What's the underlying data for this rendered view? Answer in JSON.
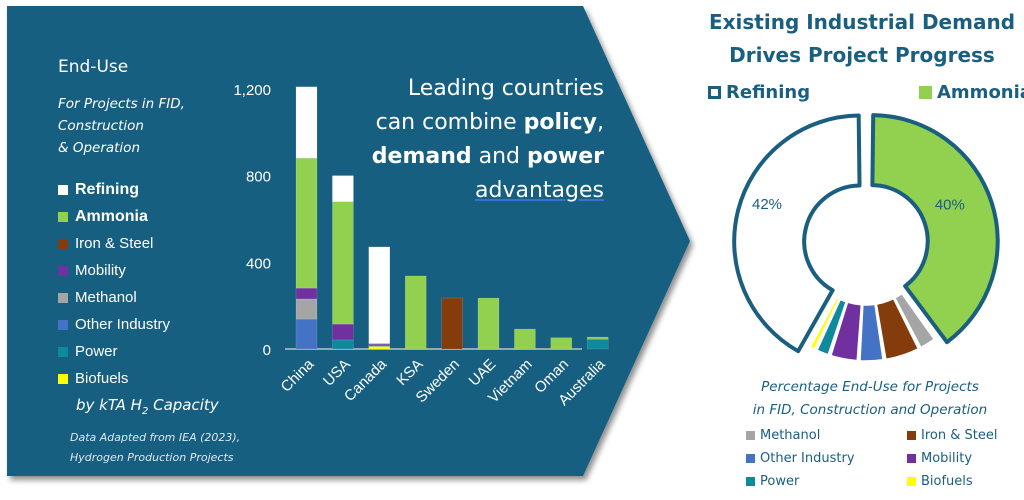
{
  "colors": {
    "panel": "#175e80",
    "refining": "#ffffff",
    "ammonia": "#92d050",
    "iron_steel": "#843c0c",
    "mobility": "#7030a0",
    "methanol": "#a5a5a5",
    "other_industry": "#4472c4",
    "power": "#0e8a9c",
    "biofuels": "#ffff00",
    "title_blue": "#1a5e80"
  },
  "left_panel": {
    "title": "End-Use",
    "subtitle_lines": [
      "For Projects in FID,",
      "Construction",
      "& Operation"
    ],
    "legend": [
      {
        "label": "Refining",
        "key": "refining",
        "bold": true
      },
      {
        "label": "Ammonia",
        "key": "ammonia",
        "bold": true
      },
      {
        "label": "Iron & Steel",
        "key": "iron_steel",
        "bold": false
      },
      {
        "label": "Mobility",
        "key": "mobility",
        "bold": false
      },
      {
        "label": "Methanol",
        "key": "methanol",
        "bold": false
      },
      {
        "label": "Other Industry",
        "key": "other_industry",
        "bold": false
      },
      {
        "label": "Power",
        "key": "power",
        "bold": false
      },
      {
        "label": "Biofuels",
        "key": "biofuels",
        "bold": false
      }
    ],
    "unit_pre": "by kTA H",
    "unit_sub": "2",
    "unit_post": " Capacity",
    "source_lines": [
      "Data Adapted from IEA (2023),",
      "Hydrogen Production Projects"
    ]
  },
  "headline": {
    "line1": "Leading countries",
    "line2_pre": "can combine ",
    "line2_bold": "policy",
    "line2_post": ",",
    "line3_bold1": "demand",
    "line3_mid": " and ",
    "line3_bold2": "power",
    "line4": "advantages"
  },
  "right_panel": {
    "title_line1": "Existing Industrial Demand",
    "title_line2": "Drives Project Progress",
    "legend_refining": "Refining",
    "legend_ammonia": "Ammonia",
    "caption_line1": "Percentage End-Use for Projects",
    "caption_line2": "in FID, Construction and Operation",
    "bottom_legend": [
      {
        "label": "Methanol",
        "key": "methanol"
      },
      {
        "label": "Iron & Steel",
        "key": "iron_steel"
      },
      {
        "label": "Other Industry",
        "key": "other_industry"
      },
      {
        "label": "Mobility",
        "key": "mobility"
      },
      {
        "label": "Power",
        "key": "power"
      },
      {
        "label": "Biofuels",
        "key": "biofuels"
      }
    ]
  },
  "chart_data": [
    {
      "type": "bar",
      "stacked": true,
      "title": "",
      "xlabel": "",
      "ylabel": "by kTA H2 Capacity",
      "ylim": [
        0,
        1200
      ],
      "yticks": [
        0,
        400,
        800,
        1200
      ],
      "ytick_labels": [
        "0",
        "400",
        "800",
        "1,200"
      ],
      "categories": [
        "China",
        "USA",
        "Canada",
        "KSA",
        "Sweden",
        "UAE",
        "Vietnam",
        "Oman",
        "Australia"
      ],
      "series": [
        {
          "name": "Biofuels",
          "key": "biofuels",
          "values": [
            0,
            0,
            12,
            0,
            0,
            0,
            0,
            0,
            0
          ]
        },
        {
          "name": "Power",
          "key": "power",
          "values": [
            0,
            42,
            0,
            0,
            0,
            0,
            0,
            0,
            45
          ]
        },
        {
          "name": "Other Industry",
          "key": "other_industry",
          "values": [
            138,
            0,
            8,
            0,
            0,
            0,
            0,
            0,
            0
          ]
        },
        {
          "name": "Methanol",
          "key": "methanol",
          "values": [
            93,
            0,
            0,
            0,
            0,
            0,
            0,
            0,
            0
          ]
        },
        {
          "name": "Mobility",
          "key": "mobility",
          "values": [
            50,
            73,
            5,
            0,
            0,
            0,
            0,
            0,
            0
          ]
        },
        {
          "name": "Iron & Steel",
          "key": "iron_steel",
          "values": [
            0,
            0,
            0,
            0,
            235,
            0,
            0,
            0,
            0
          ]
        },
        {
          "name": "Ammonia",
          "key": "ammonia",
          "values": [
            600,
            565,
            0,
            337,
            0,
            235,
            92,
            52,
            10
          ]
        },
        {
          "name": "Refining",
          "key": "refining",
          "values": [
            329,
            120,
            446,
            0,
            0,
            0,
            0,
            0,
            0
          ]
        }
      ]
    },
    {
      "type": "pie",
      "donut": true,
      "title": "Percentage End-Use for Projects in FID, Construction and Operation",
      "slices": [
        {
          "name": "Ammonia",
          "key": "ammonia",
          "value": 40,
          "label": "40%"
        },
        {
          "name": "Methanol",
          "key": "methanol",
          "value": 2.5,
          "label": ""
        },
        {
          "name": "Iron & Steel",
          "key": "iron_steel",
          "value": 5,
          "label": ""
        },
        {
          "name": "Other Industry",
          "key": "other_industry",
          "value": 3.5,
          "label": ""
        },
        {
          "name": "Mobility",
          "key": "mobility",
          "value": 4,
          "label": ""
        },
        {
          "name": "Power",
          "key": "power",
          "value": 2,
          "label": ""
        },
        {
          "name": "Biofuels",
          "key": "biofuels",
          "value": 1,
          "label": ""
        },
        {
          "name": "Refining",
          "key": "refining",
          "value": 42,
          "label": "42%"
        }
      ]
    }
  ]
}
